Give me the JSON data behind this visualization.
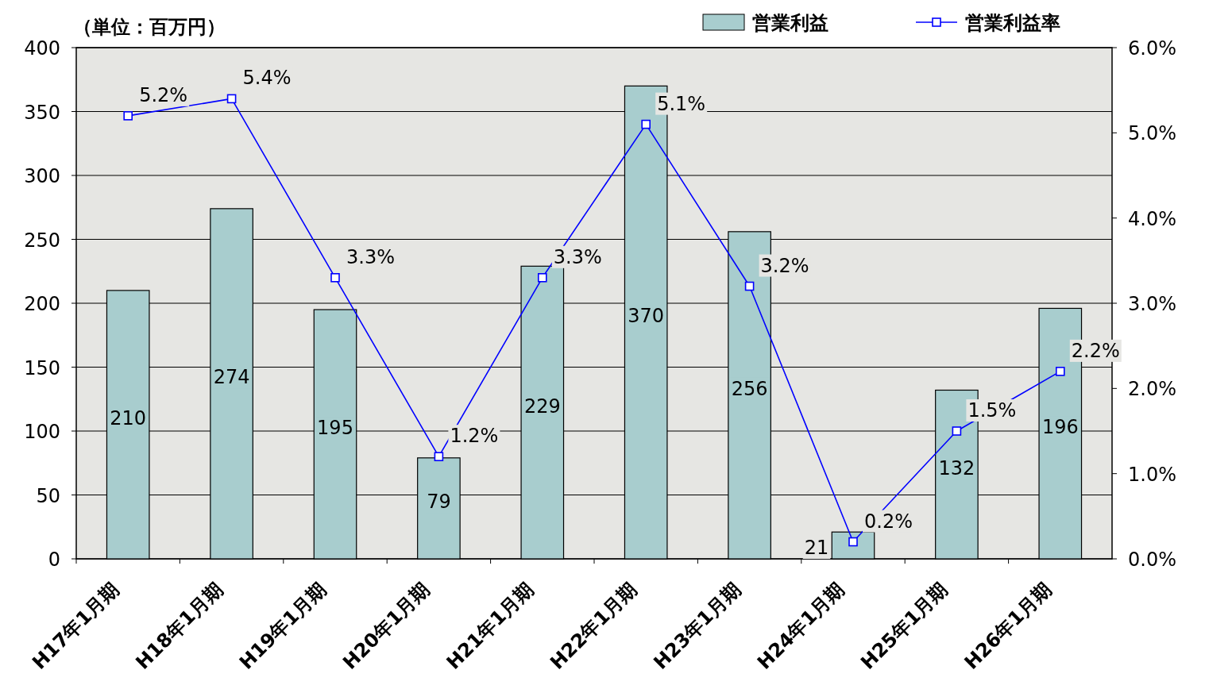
{
  "chart_data": {
    "type": "bar",
    "ylabel": "（単位：百万円）",
    "categories": [
      "H17年1月期",
      "H18年1月期",
      "H19年1月期",
      "H20年1月期",
      "H21年1月期",
      "H22年1月期",
      "H23年1月期",
      "H24年1月期",
      "H25年1月期",
      "H26年1月期"
    ],
    "series": [
      {
        "name": "営業利益",
        "color": "#a8cdce",
        "values": [
          210,
          274,
          195,
          79,
          229,
          370,
          256,
          21,
          132,
          196
        ],
        "value_labels": [
          "210",
          "274",
          "195",
          "79",
          "229",
          "370",
          "256",
          "21",
          "132",
          "196"
        ]
      },
      {
        "name": "営業利益率",
        "type": "line",
        "axis": "y2",
        "color": "#0000ff",
        "marker": "square",
        "values": [
          5.2,
          5.4,
          3.3,
          1.2,
          3.3,
          5.1,
          3.2,
          0.2,
          1.5,
          2.2
        ],
        "value_labels": [
          "5.2%",
          "5.4%",
          "3.3%",
          "1.2%",
          "3.3%",
          "5.1%",
          "3.2%",
          "0.2%",
          "1.5%",
          "2.2%"
        ]
      }
    ],
    "ylim": [
      0,
      400
    ],
    "yticks": [
      0,
      50,
      100,
      150,
      200,
      250,
      300,
      350,
      400
    ],
    "y2lim": [
      0,
      6
    ],
    "y2ticks": [
      {
        "value": 0,
        "label": "0.0%"
      },
      {
        "value": 1,
        "label": "1.0%"
      },
      {
        "value": 2,
        "label": "2.0%"
      },
      {
        "value": 3,
        "label": "3.0%"
      },
      {
        "value": 4,
        "label": "4.0%"
      },
      {
        "value": 5,
        "label": "5.0%"
      },
      {
        "value": 6,
        "label": "6.0%"
      }
    ],
    "grid": "y",
    "legend": "top right"
  }
}
